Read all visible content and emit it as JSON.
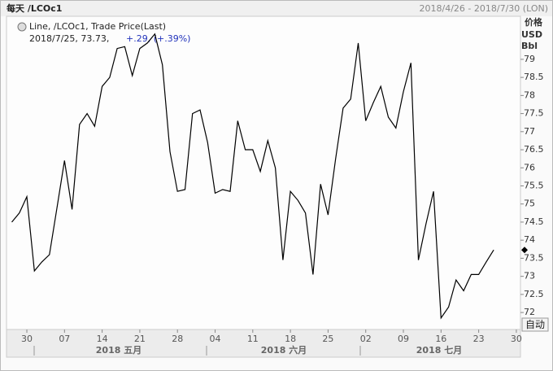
{
  "chart_data": {
    "type": "line",
    "title": "每天 /LCOc1",
    "date_range": "2018/4/26 - 2018/7/30 (LON)",
    "y_axis_label": [
      "价格",
      "USD",
      "Bbl"
    ],
    "legend": {
      "name": "Line, /LCOc1, Trade Price(Last)",
      "detail": "2018/7/25, 73.73,",
      "change": "+.29, (+.39%)"
    },
    "button": "自动",
    "months": [
      "2018 五月",
      "2018 六月",
      "2018 七月"
    ],
    "categories": [
      null,
      null,
      "30",
      null,
      null,
      null,
      null,
      "07",
      null,
      null,
      null,
      null,
      "14",
      null,
      null,
      null,
      null,
      "21",
      null,
      null,
      null,
      null,
      "28",
      null,
      null,
      null,
      null,
      "04",
      null,
      null,
      null,
      null,
      "11",
      null,
      null,
      null,
      null,
      "18",
      null,
      null,
      null,
      null,
      "25",
      null,
      null,
      null,
      null,
      "02",
      null,
      null,
      null,
      null,
      "09",
      null,
      null,
      null,
      null,
      "16",
      null,
      null,
      null,
      null,
      "23",
      null,
      null,
      null,
      null,
      "30"
    ],
    "series": [
      {
        "name": "/LCOc1",
        "color": "#000000",
        "values": [
          74.5,
          74.75,
          75.2,
          73.15,
          73.4,
          73.6,
          74.9,
          76.2,
          74.85,
          77.2,
          77.5,
          77.15,
          78.25,
          78.5,
          79.3,
          79.35,
          78.55,
          79.3,
          79.45,
          79.7,
          78.85,
          76.45,
          75.35,
          75.4,
          77.5,
          77.6,
          76.7,
          75.3,
          75.4,
          75.35,
          77.3,
          76.5,
          76.5,
          75.9,
          76.75,
          76.0,
          73.45,
          75.35,
          75.1,
          74.75,
          73.05,
          75.55,
          74.7,
          76.25,
          77.65,
          77.9,
          79.45,
          77.3,
          77.8,
          78.25,
          77.4,
          77.1,
          78.1,
          78.9,
          73.45,
          74.45,
          75.35,
          71.85,
          72.15,
          72.9,
          72.6,
          73.05,
          73.05,
          73.4,
          73.73,
          null,
          null,
          null
        ]
      }
    ],
    "ylim": [
      71.53,
      80.19
    ],
    "yticks": [
      72,
      72.5,
      73,
      73.5,
      74,
      74.5,
      75,
      75.5,
      76,
      76.5,
      77,
      77.5,
      78,
      78.5,
      79
    ],
    "grid": false
  }
}
